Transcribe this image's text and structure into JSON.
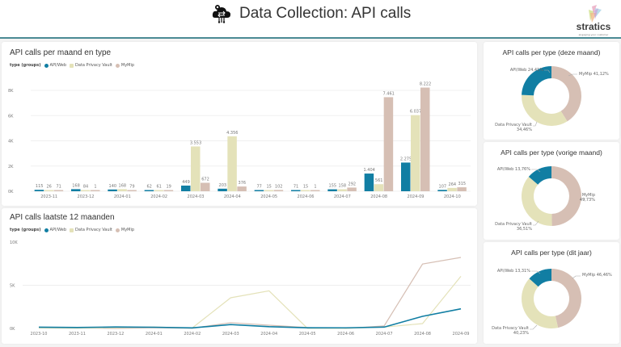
{
  "header": {
    "title": "Data Collection: API calls",
    "icon": "cloud-gear-icon",
    "logo": {
      "brand": "stratics",
      "tagline": "engaging your customer"
    }
  },
  "colors": {
    "api_web": "#117ea3",
    "data_privacy_vault": "#e4e2b9",
    "mymip": "#d6bfb4",
    "accent_line": "#4a8a94"
  },
  "bar_panel": {
    "title": "API calls per maand en type",
    "legend_title": "type (groups)",
    "legend": [
      "API/Web",
      "Data Privacy Vault",
      "MyMip"
    ]
  },
  "line_panel": {
    "title": "API calls laatste 12 maanden",
    "legend_title": "type (groups)",
    "legend": [
      "API/Web",
      "Data Privacy Vault",
      "MyMip"
    ]
  },
  "donuts": [
    {
      "title": "API calls per type (deze maand)",
      "labels": [
        "API/Web 24,41%",
        "Data Privacy Vault",
        "34,46%",
        "MyMip 41,12%"
      ],
      "values": [
        24.41,
        34.46,
        41.12
      ]
    },
    {
      "title": "API calls per type (vorige maand)",
      "labels": [
        "API/Web 13,76%",
        "Data Privacy Vault",
        "36,51%",
        "MyMip",
        "49,73%"
      ],
      "values": [
        13.76,
        36.51,
        49.73
      ]
    },
    {
      "title": "API calls per type (dit jaar)",
      "labels": [
        "API/Web 13,31%",
        "Data Privacy Vault",
        "40,23%",
        "MyMip 46,46%"
      ],
      "values": [
        13.31,
        40.23,
        46.46
      ]
    }
  ],
  "chart_data": [
    {
      "type": "bar",
      "title": "API calls per maand en type",
      "categories": [
        "2023-11",
        "2023-12",
        "2024-01",
        "2024-02",
        "2024-03",
        "2024-04",
        "2024-05",
        "2024-06",
        "2024-07",
        "2024-08",
        "2024-09",
        "2024-10"
      ],
      "series": [
        {
          "name": "API/Web",
          "values": [
            115,
            168,
            140,
            62,
            449,
            203,
            77,
            71,
            155,
            1404,
            2275,
            107
          ],
          "labels": [
            "115",
            "168",
            "140",
            "62",
            "449",
            "203",
            "77",
            "71",
            "155",
            "1.404",
            "2.275",
            "107"
          ]
        },
        {
          "name": "Data Privacy Vault",
          "values": [
            26,
            84,
            168,
            61,
            3553,
            4356,
            15,
            15,
            158,
            561,
            6037,
            264
          ],
          "labels": [
            "26",
            "84",
            "168",
            "61",
            "3.553",
            "4.356",
            "15",
            "15",
            "158",
            "561",
            "6.037",
            "264"
          ]
        },
        {
          "name": "MyMip",
          "values": [
            71,
            1,
            79,
            19,
            672,
            376,
            102,
            1,
            292,
            7461,
            8222,
            315
          ],
          "labels": [
            "71",
            "1",
            "79",
            "19",
            "672",
            "376",
            "102",
            "1",
            "292",
            "7.461",
            "8.222",
            "315"
          ]
        }
      ],
      "yticks": [
        "0K",
        "2K",
        "4K",
        "6K",
        "8K"
      ],
      "ylim": [
        0,
        8500
      ],
      "legend_position": "top-left",
      "grid": true
    },
    {
      "type": "line",
      "title": "API calls laatste 12 maanden",
      "categories": [
        "2023-10",
        "2023-11",
        "2023-12",
        "2024-01",
        "2024-02",
        "2024-03",
        "2024-04",
        "2024-05",
        "2024-06",
        "2024-07",
        "2024-08",
        "2024-09"
      ],
      "series": [
        {
          "name": "API/Web",
          "values": [
            150,
            115,
            168,
            140,
            62,
            449,
            203,
            77,
            71,
            155,
            1404,
            2275
          ]
        },
        {
          "name": "Data Privacy Vault",
          "values": [
            50,
            26,
            84,
            168,
            61,
            3553,
            4356,
            15,
            15,
            158,
            561,
            6037
          ]
        },
        {
          "name": "MyMip",
          "values": [
            60,
            71,
            1,
            79,
            19,
            672,
            376,
            102,
            1,
            292,
            7461,
            8222
          ]
        }
      ],
      "yticks": [
        "0K",
        "5K",
        "10K"
      ],
      "ylim": [
        0,
        10000
      ],
      "legend_position": "top-left",
      "grid": true
    }
  ]
}
